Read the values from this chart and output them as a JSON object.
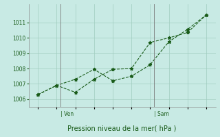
{
  "line1_x": [
    0,
    1,
    2,
    3,
    4,
    5,
    6,
    7,
    8,
    9
  ],
  "line1_y": [
    1006.3,
    1006.9,
    1006.45,
    1007.3,
    1007.95,
    1008.0,
    1009.7,
    1010.0,
    1010.35,
    1011.5
  ],
  "line2_x": [
    0,
    1,
    2,
    3,
    4,
    5,
    6,
    7,
    8,
    9
  ],
  "line2_y": [
    1006.3,
    1006.9,
    1007.3,
    1007.95,
    1007.2,
    1007.5,
    1008.25,
    1009.75,
    1010.55,
    1011.5
  ],
  "yticks": [
    1006,
    1007,
    1008,
    1009,
    1010,
    1011
  ],
  "xticks": [
    0,
    1,
    2,
    3,
    4,
    5,
    6,
    7,
    8,
    9
  ],
  "ven_x": 1.2,
  "sam_x": 6.2,
  "xlabel": "Pression niveau de la mer( hPa )",
  "bg_color": "#c8eae4",
  "line_color": "#1a5c1a",
  "grid_color": "#a0ccbf",
  "ylim": [
    1005.5,
    1012.2
  ],
  "xlim": [
    -0.5,
    9.5
  ]
}
